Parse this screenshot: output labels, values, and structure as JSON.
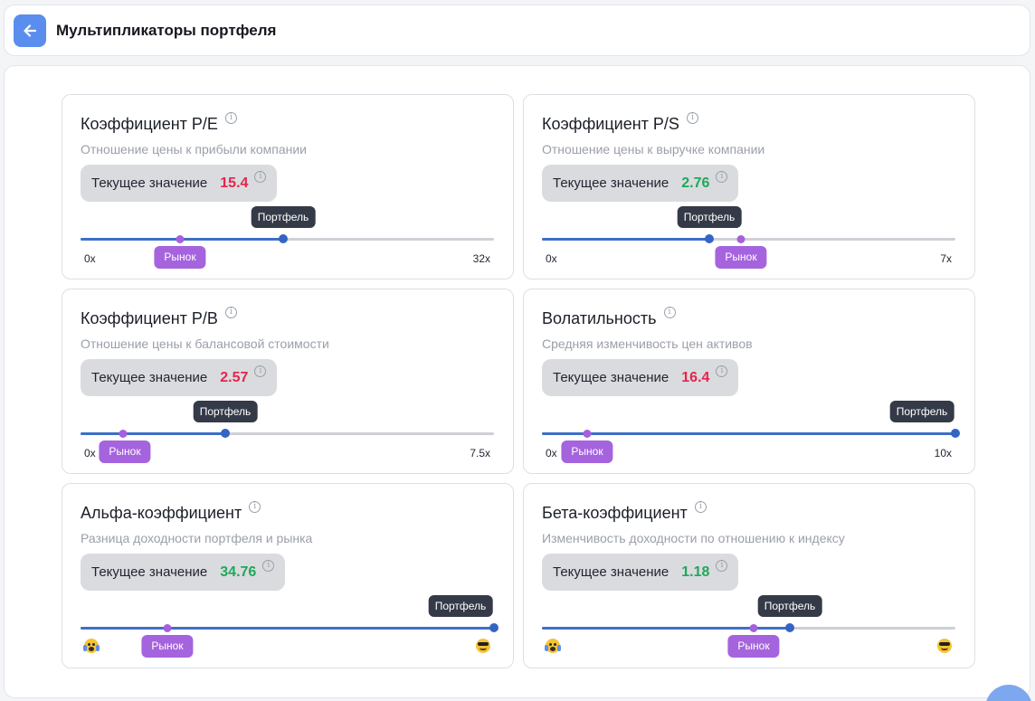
{
  "header": {
    "title": "Мультипликаторы портфеля",
    "back_icon": "arrow-left-icon"
  },
  "common": {
    "current_label": "Текущее значение",
    "portfolio_label": "Портфель",
    "market_label": "Рынок"
  },
  "colors": {
    "accent": "#5b8def",
    "negative": "#e5254d",
    "positive": "#1ea85a",
    "portfolio": "#3464c4",
    "market": "#a564dd"
  },
  "cards": [
    {
      "title": "Коэффициент P/E",
      "description": "Отношение цены к прибыли компании",
      "value": "15.4",
      "tone": "neg",
      "min": "0x",
      "max": "32x",
      "portfolio_pos": 0.49,
      "market_pos": 0.24
    },
    {
      "title": "Коэффициент P/S",
      "description": "Отношение цены к выручке компании",
      "value": "2.76",
      "tone": "pos",
      "min": "0x",
      "max": "7x",
      "portfolio_pos": 0.405,
      "market_pos": 0.482
    },
    {
      "title": "Коэффициент P/B",
      "description": "Отношение цены к балансовой стоимости",
      "value": "2.57",
      "tone": "neg",
      "min": "0x",
      "max": "7.5x",
      "portfolio_pos": 0.35,
      "market_pos": 0.103
    },
    {
      "title": "Волатильность",
      "description": "Средняя изменчивость цен активов",
      "value": "16.4",
      "tone": "neg",
      "min": "0x",
      "max": "10x",
      "portfolio_pos": 1.0,
      "market_pos": 0.11
    },
    {
      "title": "Альфа-коэффициент",
      "description": "Разница доходности портфеля и рынка",
      "value": "34.76",
      "tone": "pos",
      "min": "scared-emoji-icon",
      "max": "cool-emoji-icon",
      "portfolio_pos": 1.0,
      "market_pos": 0.21
    },
    {
      "title": "Бета-коэффициент",
      "description": "Изменчивость доходности по отношению к индексу",
      "value": "1.18",
      "tone": "pos",
      "min": "scared-emoji-icon",
      "max": "cool-emoji-icon",
      "portfolio_pos": 0.6,
      "market_pos": 0.512
    }
  ]
}
